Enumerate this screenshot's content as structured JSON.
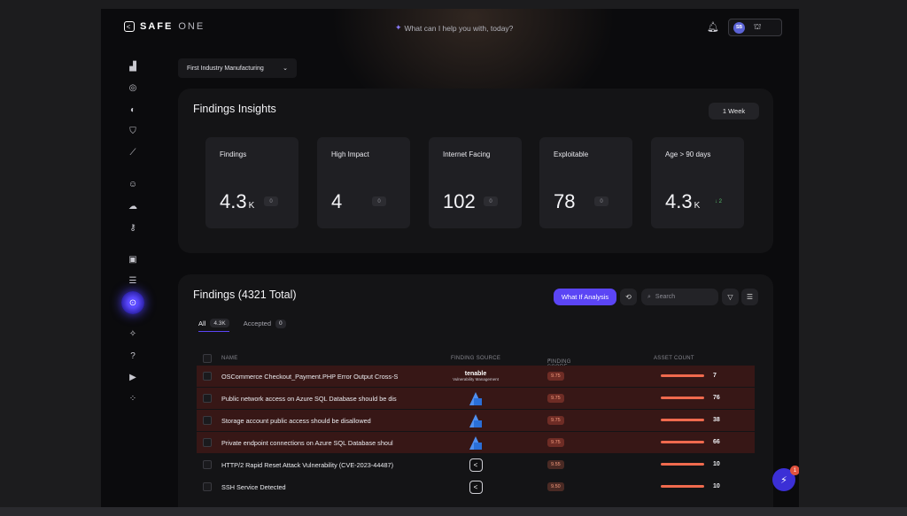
{
  "brand": {
    "name_bold": "SAFE",
    "name_light": "ONE"
  },
  "search_prompt": "What can I help you with, today?",
  "user": {
    "initials": "SB"
  },
  "org_selector": {
    "value": "First Industry Manufacturing"
  },
  "insights": {
    "title": "Findings Insights",
    "range": "1 Week",
    "cards": [
      {
        "label": "Findings",
        "value": "4.3",
        "unit": "K",
        "delta": "0"
      },
      {
        "label": "High Impact",
        "value": "4",
        "unit": "",
        "delta": "0"
      },
      {
        "label": "Internet Facing",
        "value": "102",
        "unit": "",
        "delta": "0"
      },
      {
        "label": "Exploitable",
        "value": "78",
        "unit": "",
        "delta": "0"
      },
      {
        "label": "Age > 90 days",
        "value": "4.3",
        "unit": "K",
        "delta": "↓ 2"
      }
    ]
  },
  "findings": {
    "title": "Findings (4321 Total)",
    "what_if_label": "What If Analysis",
    "search_placeholder": "Search",
    "tabs": [
      {
        "label": "All",
        "count": "4.3K"
      },
      {
        "label": "Accepted",
        "count": "0"
      }
    ],
    "columns": {
      "name": "NAME",
      "source": "FINDING SOURCE",
      "score": "FINDING SCORE",
      "assets": "ASSET COUNT"
    },
    "rows": [
      {
        "name": "OSCommerce Checkout_Payment.PHP Error Output Cross-S",
        "source": "tenable",
        "score": "9.75",
        "assets": "7",
        "critical": true
      },
      {
        "name": "Public network access on Azure SQL Database should be dis",
        "source": "azure",
        "score": "9.75",
        "assets": "76",
        "critical": true
      },
      {
        "name": "Storage account public access should be disallowed",
        "source": "azure",
        "score": "9.75",
        "assets": "38",
        "critical": true
      },
      {
        "name": "Private endpoint connections on Azure SQL Database shoul",
        "source": "azure",
        "score": "9.75",
        "assets": "66",
        "critical": true
      },
      {
        "name": "HTTP/2 Rapid Reset Attack Vulnerability (CVE-2023-44487)",
        "source": "safe",
        "score": "9.55",
        "assets": "10",
        "critical": false
      },
      {
        "name": "SSH Service Detected",
        "source": "safe",
        "score": "9.50",
        "assets": "10",
        "critical": false
      }
    ],
    "tenable_label": "tenable",
    "tenable_sub": "Vulnerability Management"
  },
  "chat": {
    "badge": "1"
  },
  "icons": {
    "sidebar": [
      "chart-icon",
      "target-icon",
      "toggle-icon",
      "shield-icon",
      "trend-icon",
      "user-icon",
      "cloud-icon",
      "key-icon",
      "id-icon",
      "list-icon",
      "findings-icon",
      "compass-icon",
      "help-icon",
      "play-icon",
      "apps-icon"
    ]
  }
}
